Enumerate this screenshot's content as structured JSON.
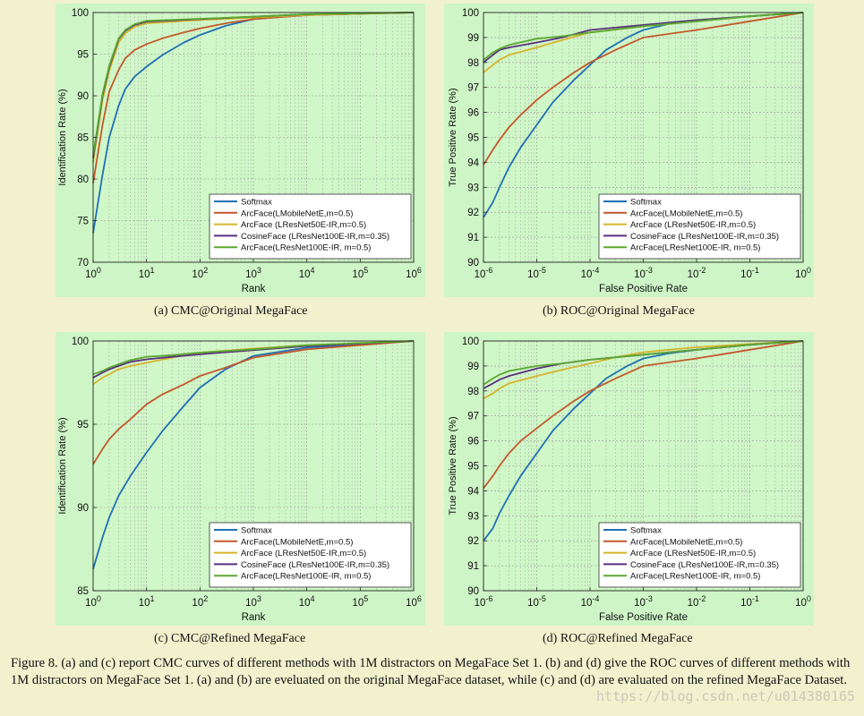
{
  "colors": {
    "softmax": "#1f6fb5",
    "arcface_mobile": "#c4572a",
    "arcface_r50": "#d6b42a",
    "cosineface_r100": "#5b2f82",
    "arcface_r100": "#5aa830"
  },
  "chart_data": [
    {
      "type": "line",
      "id": "a",
      "panel_caption": "(a)  CMC@Original MegaFace",
      "xlabel": "Rank",
      "ylabel": "Identification Rate (%)",
      "xscale": "log",
      "xlim": [
        1,
        1000000
      ],
      "ylim": [
        70,
        100
      ],
      "xticks": [
        1,
        10,
        100,
        1000,
        10000,
        100000,
        1000000
      ],
      "xtick_labels": [
        "10^0",
        "10^1",
        "10^2",
        "10^3",
        "10^4",
        "10^5",
        "10^6"
      ],
      "yticks": [
        70,
        75,
        80,
        85,
        90,
        95,
        100
      ],
      "ytick_labels": [
        "70",
        "75",
        "80",
        "85",
        "90",
        "95",
        "100"
      ],
      "grid": true,
      "legend": "bottom-right",
      "series": [
        {
          "name": "Softmax",
          "color_key": "softmax",
          "x": [
            1,
            1.5,
            2,
            3,
            4,
            6,
            10,
            20,
            50,
            100,
            300,
            1000,
            10000,
            1000000
          ],
          "y": [
            73.5,
            80.5,
            85,
            88.8,
            90.8,
            92.3,
            93.5,
            94.9,
            96.4,
            97.3,
            98.4,
            99.2,
            99.7,
            100
          ]
        },
        {
          "name": "ArcFace(LMobileNetE,m=0.5)",
          "color_key": "arcface_mobile",
          "x": [
            1,
            1.5,
            2,
            3,
            4,
            6,
            10,
            20,
            50,
            100,
            300,
            1000,
            10000,
            1000000
          ],
          "y": [
            79.5,
            86.5,
            90.5,
            93.1,
            94.5,
            95.5,
            96.2,
            96.9,
            97.6,
            98.1,
            98.7,
            99.2,
            99.7,
            100
          ]
        },
        {
          "name": "ArcFace (LResNet50E-IR,m=0.5)",
          "color_key": "arcface_r50",
          "x": [
            1,
            1.5,
            2,
            3,
            4,
            6,
            10,
            100,
            1000,
            10000,
            1000000
          ],
          "y": [
            82,
            89.5,
            93,
            96.4,
            97.5,
            98.3,
            98.7,
            99.1,
            99.4,
            99.7,
            100
          ]
        },
        {
          "name": "CosineFace (LResNet100E-IR,m=0.35)",
          "color_key": "cosineface_r100",
          "x": [
            1,
            1.5,
            2,
            3,
            4,
            6,
            10,
            100,
            1000,
            10000,
            1000000
          ],
          "y": [
            82.5,
            90,
            93.4,
            96.8,
            97.8,
            98.5,
            98.9,
            99.2,
            99.5,
            99.8,
            100
          ]
        },
        {
          "name": "ArcFace(LResNet100E-IR, m=0.5)",
          "color_key": "arcface_r100",
          "x": [
            1,
            1.5,
            2,
            3,
            4,
            6,
            10,
            100,
            1000,
            10000,
            1000000
          ],
          "y": [
            82.8,
            90.2,
            93.6,
            96.9,
            97.9,
            98.6,
            99,
            99.25,
            99.5,
            99.8,
            100
          ]
        }
      ]
    },
    {
      "type": "line",
      "id": "b",
      "panel_caption": "(b)  ROC@Original MegaFace",
      "xlabel": "False Positive Rate",
      "ylabel": "True Positive Rate (%)",
      "xscale": "log",
      "xlim": [
        1e-06,
        1
      ],
      "ylim": [
        90,
        100
      ],
      "xticks": [
        1e-06,
        1e-05,
        0.0001,
        0.001,
        0.01,
        0.1,
        1
      ],
      "xtick_labels": [
        "10^-6",
        "10^-5",
        "10^-4",
        "10^-3",
        "10^-2",
        "10^-1",
        "10^0"
      ],
      "yticks": [
        90,
        91,
        92,
        93,
        94,
        95,
        96,
        97,
        98,
        99,
        100
      ],
      "ytick_labels": [
        "90",
        "91",
        "92",
        "93",
        "94",
        "95",
        "96",
        "97",
        "98",
        "99",
        "100"
      ],
      "grid": true,
      "legend": "bottom-right",
      "series": [
        {
          "name": "Softmax",
          "color_key": "softmax",
          "x": [
            1e-06,
            1.5e-06,
            2e-06,
            3e-06,
            5e-06,
            1e-05,
            2e-05,
            5e-05,
            0.0001,
            0.0002,
            0.0005,
            0.001,
            0.003,
            0.01,
            0.1,
            1
          ],
          "y": [
            91.8,
            92.4,
            93,
            93.8,
            94.6,
            95.5,
            96.4,
            97.3,
            97.9,
            98.5,
            99,
            99.3,
            99.55,
            99.65,
            99.85,
            100
          ]
        },
        {
          "name": "ArcFace(LMobileNetE,m=0.5)",
          "color_key": "arcface_mobile",
          "x": [
            1e-06,
            1.5e-06,
            2e-06,
            3e-06,
            5e-06,
            1e-05,
            2e-05,
            5e-05,
            0.0001,
            0.0003,
            0.001,
            0.01,
            0.1,
            1
          ],
          "y": [
            93.9,
            94.5,
            94.9,
            95.4,
            95.9,
            96.5,
            97,
            97.6,
            98,
            98.5,
            99,
            99.3,
            99.65,
            100
          ]
        },
        {
          "name": "ArcFace (LResNet50E-IR,m=0.5)",
          "color_key": "arcface_r50",
          "x": [
            1e-06,
            1.5e-06,
            2e-06,
            3e-06,
            1e-05,
            3e-05,
            0.0001,
            0.001,
            0.01,
            0.1,
            1
          ],
          "y": [
            97.6,
            97.9,
            98.1,
            98.3,
            98.6,
            98.9,
            99.2,
            99.45,
            99.65,
            99.85,
            100
          ]
        },
        {
          "name": "CosineFace (LResNet100E-IR,m=0.35)",
          "color_key": "cosineface_r100",
          "x": [
            1e-06,
            1.5e-06,
            2e-06,
            3e-06,
            1e-05,
            3e-05,
            0.0001,
            0.001,
            0.01,
            0.1,
            1
          ],
          "y": [
            98,
            98.3,
            98.5,
            98.6,
            98.8,
            99,
            99.3,
            99.5,
            99.7,
            99.85,
            100
          ]
        },
        {
          "name": "ArcFace(LResNet100E-IR, m=0.5)",
          "color_key": "arcface_r100",
          "x": [
            1e-06,
            1.5e-06,
            2e-06,
            3e-06,
            1e-05,
            3e-05,
            0.0001,
            0.001,
            0.01,
            0.1,
            1
          ],
          "y": [
            98.1,
            98.4,
            98.55,
            98.7,
            98.95,
            99.05,
            99.2,
            99.45,
            99.65,
            99.85,
            100
          ]
        }
      ]
    },
    {
      "type": "line",
      "id": "c",
      "panel_caption": "(c)  CMC@Refined MegaFace",
      "xlabel": "Rank",
      "ylabel": "Identification Rate (%)",
      "xscale": "log",
      "xlim": [
        1,
        1000000
      ],
      "ylim": [
        85,
        100
      ],
      "xticks": [
        1,
        10,
        100,
        1000,
        10000,
        100000,
        1000000
      ],
      "xtick_labels": [
        "10^0",
        "10^1",
        "10^2",
        "10^3",
        "10^4",
        "10^5",
        "10^6"
      ],
      "yticks": [
        85,
        90,
        95,
        100
      ],
      "ytick_labels": [
        "85",
        "90",
        "95",
        "100"
      ],
      "grid": true,
      "legend": "bottom-right",
      "series": [
        {
          "name": "Softmax",
          "color_key": "softmax",
          "x": [
            1,
            1.5,
            2,
            3,
            5,
            10,
            20,
            50,
            100,
            300,
            1000,
            10000,
            1000000
          ],
          "y": [
            86.3,
            88.2,
            89.4,
            90.7,
            91.9,
            93.3,
            94.6,
            96.1,
            97.2,
            98.3,
            99.1,
            99.6,
            100
          ]
        },
        {
          "name": "ArcFace(LMobileNetE,m=0.5)",
          "color_key": "arcface_mobile",
          "x": [
            1,
            1.5,
            2,
            3,
            5,
            10,
            20,
            50,
            100,
            300,
            1000,
            10000,
            1000000
          ],
          "y": [
            92.6,
            93.5,
            94.1,
            94.7,
            95.3,
            96.2,
            96.8,
            97.4,
            97.9,
            98.4,
            99,
            99.5,
            100
          ]
        },
        {
          "name": "ArcFace (LResNet50E-IR,m=0.5)",
          "color_key": "arcface_r50",
          "x": [
            1,
            1.5,
            2,
            3,
            5,
            10,
            30,
            100,
            1000,
            10000,
            1000000
          ],
          "y": [
            97.4,
            97.8,
            98,
            98.3,
            98.5,
            98.7,
            99,
            99.3,
            99.55,
            99.75,
            100
          ]
        },
        {
          "name": "CosineFace (LResNet100E-IR,m=0.35)",
          "color_key": "cosineface_r100",
          "x": [
            1,
            1.5,
            2,
            3,
            5,
            10,
            30,
            100,
            1000,
            10000,
            1000000
          ],
          "y": [
            97.8,
            98.1,
            98.3,
            98.5,
            98.75,
            98.9,
            99.05,
            99.2,
            99.45,
            99.7,
            100
          ]
        },
        {
          "name": "ArcFace(LResNet100E-IR, m=0.5)",
          "color_key": "arcface_r100",
          "x": [
            1,
            1.5,
            2,
            3,
            5,
            10,
            30,
            100,
            1000,
            10000,
            1000000
          ],
          "y": [
            98,
            98.2,
            98.4,
            98.6,
            98.85,
            99.05,
            99.15,
            99.3,
            99.5,
            99.75,
            100
          ]
        }
      ]
    },
    {
      "type": "line",
      "id": "d",
      "panel_caption": "(d)  ROC@Refined MegaFace",
      "xlabel": "False Positive Rate",
      "ylabel": "True Positive Rate (%)",
      "xscale": "log",
      "xlim": [
        1e-06,
        1
      ],
      "ylim": [
        90,
        100
      ],
      "xticks": [
        1e-06,
        1e-05,
        0.0001,
        0.001,
        0.01,
        0.1,
        1
      ],
      "xtick_labels": [
        "10^-6",
        "10^-5",
        "10^-4",
        "10^-3",
        "10^-2",
        "10^-1",
        "10^0"
      ],
      "yticks": [
        90,
        91,
        92,
        93,
        94,
        95,
        96,
        97,
        98,
        99,
        100
      ],
      "ytick_labels": [
        "90",
        "91",
        "92",
        "93",
        "94",
        "95",
        "96",
        "97",
        "98",
        "99",
        "100"
      ],
      "grid": true,
      "legend": "bottom-right",
      "series": [
        {
          "name": "Softmax",
          "color_key": "softmax",
          "x": [
            1e-06,
            1.5e-06,
            2e-06,
            3e-06,
            5e-06,
            1e-05,
            2e-05,
            5e-05,
            0.0001,
            0.0002,
            0.0005,
            0.001,
            0.003,
            0.01,
            0.1,
            1
          ],
          "y": [
            92,
            92.5,
            93.1,
            93.8,
            94.6,
            95.5,
            96.4,
            97.3,
            97.9,
            98.5,
            99,
            99.3,
            99.5,
            99.65,
            99.85,
            100
          ]
        },
        {
          "name": "ArcFace(LMobileNetE,m=0.5)",
          "color_key": "arcface_mobile",
          "x": [
            1e-06,
            1.5e-06,
            2e-06,
            3e-06,
            5e-06,
            1e-05,
            2e-05,
            5e-05,
            0.0001,
            0.0003,
            0.001,
            0.01,
            0.1,
            1
          ],
          "y": [
            94.1,
            94.6,
            95,
            95.5,
            96,
            96.5,
            97,
            97.6,
            98,
            98.5,
            99,
            99.3,
            99.65,
            100
          ]
        },
        {
          "name": "ArcFace (LResNet50E-IR,m=0.5)",
          "color_key": "arcface_r50",
          "x": [
            1e-06,
            1.5e-06,
            2e-06,
            3e-06,
            1e-05,
            3e-05,
            0.0001,
            0.0003,
            0.001,
            0.003,
            0.01,
            0.1,
            1
          ],
          "y": [
            97.7,
            97.9,
            98.1,
            98.3,
            98.6,
            98.85,
            99.1,
            99.35,
            99.55,
            99.65,
            99.75,
            99.88,
            100
          ]
        },
        {
          "name": "CosineFace (LResNet100E-IR,m=0.35)",
          "color_key": "cosineface_r100",
          "x": [
            1e-06,
            1.5e-06,
            2e-06,
            3e-06,
            1e-05,
            3e-05,
            0.0001,
            0.001,
            0.01,
            0.1,
            1
          ],
          "y": [
            98.1,
            98.3,
            98.45,
            98.6,
            98.9,
            99.1,
            99.25,
            99.45,
            99.65,
            99.85,
            100
          ]
        },
        {
          "name": "ArcFace(LResNet100E-IR, m=0.5)",
          "color_key": "arcface_r100",
          "x": [
            1e-06,
            1.5e-06,
            2e-06,
            3e-06,
            1e-05,
            3e-05,
            0.0001,
            0.001,
            0.01,
            0.1,
            1
          ],
          "y": [
            98.25,
            98.5,
            98.65,
            98.8,
            99,
            99.1,
            99.25,
            99.45,
            99.65,
            99.85,
            100
          ]
        }
      ]
    }
  ],
  "figure_caption": "Figure 8. (a) and (c) report CMC curves of different methods with 1M distractors on MegaFace Set 1. (b) and (d) give the ROC curves of different methods with 1M distractors on MegaFace Set 1. (a) and (b) are eveluated on the original MegaFace dataset, while (c) and (d) are evaluated on the refined MegaFace Dataset.",
  "watermark": "https://blog.csdn.net/u014380165"
}
